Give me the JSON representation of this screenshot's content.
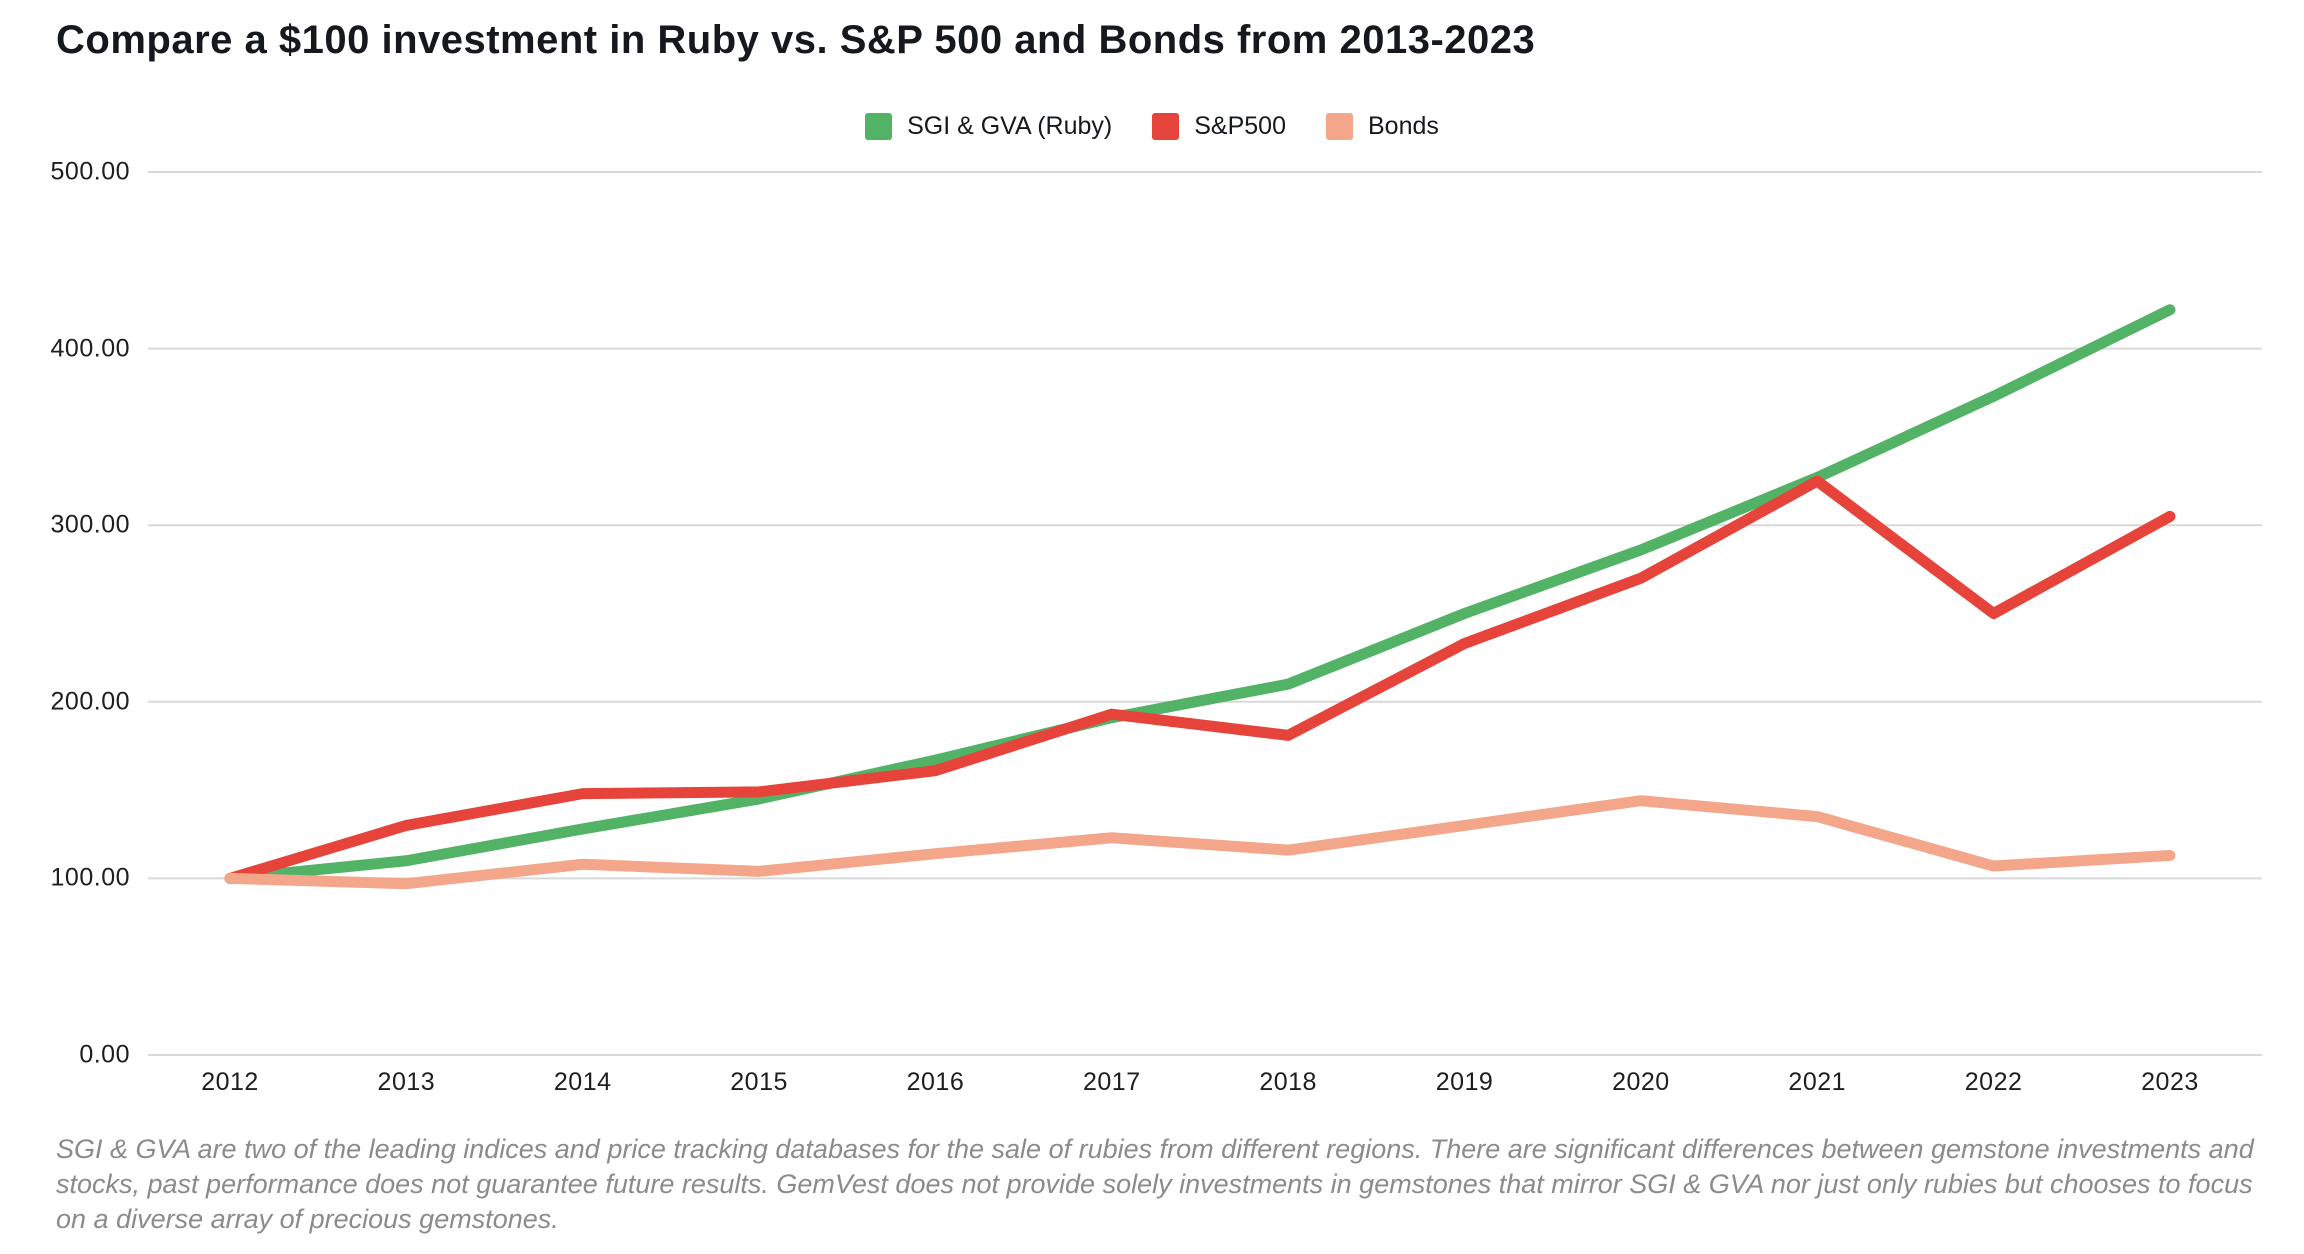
{
  "title": "Compare a $100 investment in Ruby vs. S&P 500 and Bonds from 2013-2023",
  "footer": "SGI & GVA are two of the leading indices and price tracking databases for the sale of rubies from different regions. There are significant differences between gemstone investments and stocks, past performance does not guarantee future results. GemVest does not provide solely investments in gemstones that mirror SGI & GVA nor just only rubies but chooses to focus on a diverse array of precious gemstones.",
  "colors": {
    "ruby_green": "#52b266",
    "sp500_red": "#e6433b",
    "bonds_salmon": "#f3a689",
    "gridline": "#d9d9d9",
    "title_text": "#15191e",
    "axis_text": "#1e1e1e",
    "footer_text": "#8b8b8b"
  },
  "chart_data": {
    "type": "line",
    "title": "Compare a $100 investment in Ruby vs. S&P 500 and Bonds from 2013-2023",
    "categories": [
      "2012",
      "2013",
      "2014",
      "2015",
      "2016",
      "2017",
      "2018",
      "2019",
      "2020",
      "2021",
      "2022",
      "2023"
    ],
    "series": [
      {
        "name": "SGI & GVA (Ruby)",
        "color": "#52b266",
        "values": [
          100,
          110,
          128,
          145,
          167,
          191,
          210,
          250,
          286,
          327,
          373,
          422
        ]
      },
      {
        "name": "S&P500",
        "color": "#e6433b",
        "values": [
          100,
          130,
          148,
          149,
          161,
          193,
          181,
          233,
          270,
          325,
          250,
          305
        ]
      },
      {
        "name": "Bonds",
        "color": "#f3a689",
        "values": [
          100,
          97,
          108,
          104,
          114,
          123,
          116,
          130,
          144,
          135,
          107,
          113
        ]
      }
    ],
    "ylim": [
      0,
      500
    ],
    "y_tick_labels": [
      "0.00",
      "100.00",
      "200.00",
      "300.00",
      "400.00",
      "500.00"
    ],
    "xlabel": "",
    "ylabel": "",
    "grid": "horizontal",
    "legend_position": "top-center"
  }
}
